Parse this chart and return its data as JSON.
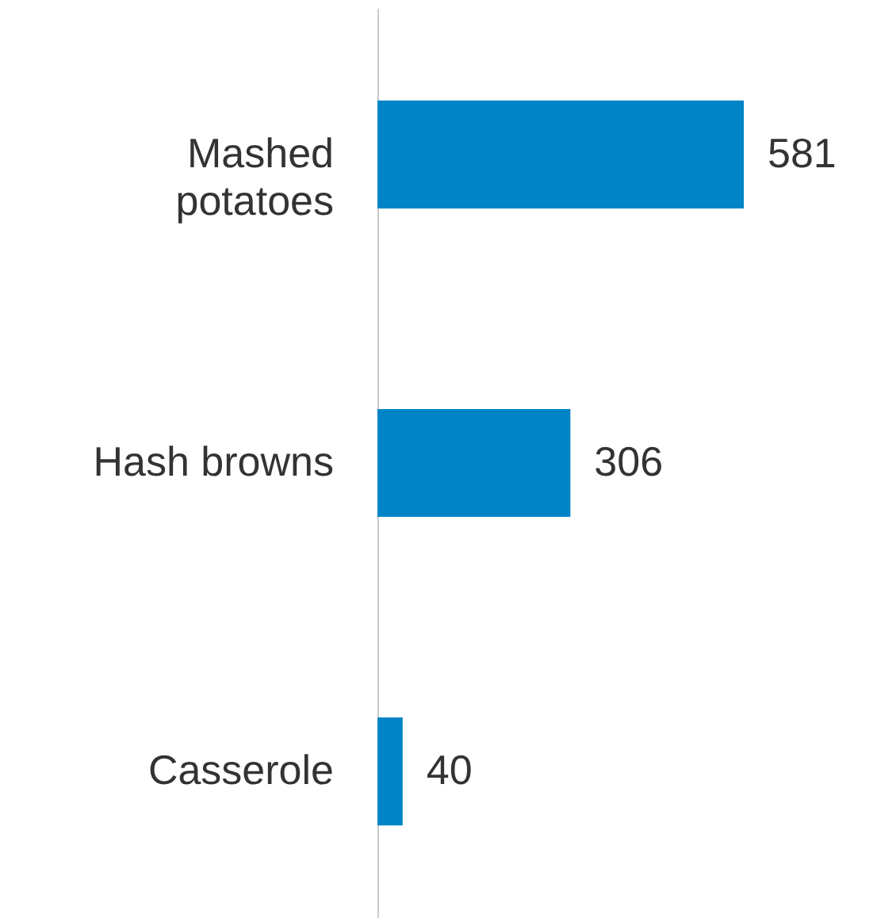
{
  "chart_data": {
    "type": "bar",
    "orientation": "horizontal",
    "categories": [
      "Mashed potatoes",
      "Hash browns",
      "Casserole"
    ],
    "values": [
      581,
      306,
      40
    ],
    "color": "#0084c8",
    "data_labels": true
  }
}
